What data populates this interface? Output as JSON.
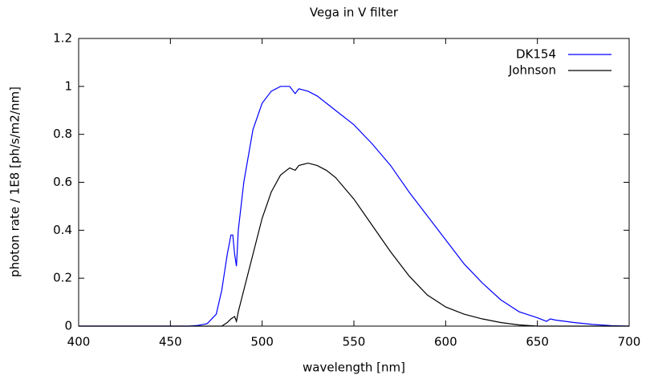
{
  "chart_data": {
    "type": "line",
    "title": "Vega in V filter",
    "x_label": "wavelength [nm]",
    "y_label": "photon rate / 1E8 [ph/s/m2/nm]",
    "x": [
      400,
      460,
      465,
      470,
      475,
      478,
      480,
      481,
      483,
      484,
      485,
      486,
      487,
      490,
      495,
      500,
      505,
      510,
      515,
      518,
      520,
      525,
      530,
      535,
      540,
      550,
      560,
      570,
      580,
      590,
      600,
      610,
      620,
      630,
      640,
      650,
      655,
      657,
      660,
      670,
      680,
      690,
      700
    ],
    "series": [
      {
        "name": "DK154",
        "color": "#0000ff",
        "values": [
          0,
          0,
          0.003,
          0.01,
          0.05,
          0.15,
          0.25,
          0.3,
          0.38,
          0.38,
          0.3,
          0.25,
          0.4,
          0.6,
          0.82,
          0.93,
          0.98,
          1.0,
          1.0,
          0.97,
          0.99,
          0.98,
          0.96,
          0.93,
          0.9,
          0.84,
          0.76,
          0.67,
          0.56,
          0.46,
          0.36,
          0.26,
          0.18,
          0.11,
          0.06,
          0.035,
          0.02,
          0.03,
          0.025,
          0.015,
          0.007,
          0.002,
          0
        ]
      },
      {
        "name": "Johnson",
        "color": "#000000",
        "values": [
          0,
          0,
          0,
          0,
          0,
          0,
          0.01,
          0.015,
          0.03,
          0.035,
          0.04,
          0.02,
          0.06,
          0.15,
          0.3,
          0.45,
          0.56,
          0.63,
          0.66,
          0.65,
          0.67,
          0.68,
          0.67,
          0.65,
          0.62,
          0.53,
          0.42,
          0.31,
          0.21,
          0.13,
          0.08,
          0.05,
          0.03,
          0.015,
          0.005,
          0,
          0,
          0,
          0,
          0,
          0,
          0,
          0
        ]
      }
    ],
    "xlim": [
      400,
      700
    ],
    "xticks": [
      400,
      450,
      500,
      550,
      600,
      650,
      700
    ],
    "ylim": [
      0,
      1.2
    ],
    "yticks": [
      0,
      0.2,
      0.4,
      0.6,
      0.8,
      1,
      1.2
    ],
    "legend": "top-right"
  }
}
